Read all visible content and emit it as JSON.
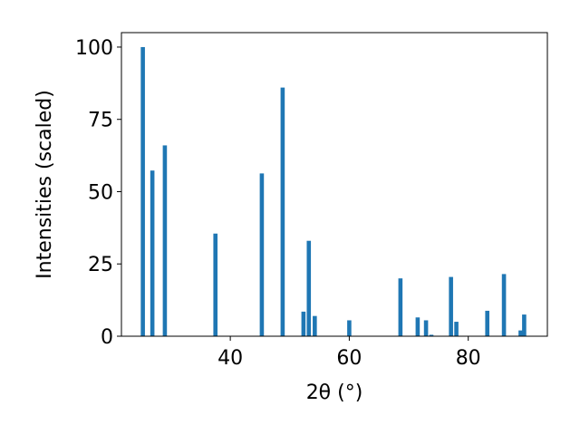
{
  "chart_data": {
    "type": "bar",
    "xlabel": "2θ (°)",
    "ylabel": "Intensities (scaled)",
    "xlim": [
      21.7,
      93.3
    ],
    "ylim": [
      0,
      105
    ],
    "xticks": [
      40,
      60,
      80
    ],
    "yticks": [
      0,
      25,
      50,
      75,
      100
    ],
    "bar_width": 0.7,
    "color": "#1f77b4",
    "grid": false,
    "points": [
      {
        "x": 25.3,
        "y": 100.0
      },
      {
        "x": 26.9,
        "y": 57.3
      },
      {
        "x": 29.0,
        "y": 66.0
      },
      {
        "x": 37.5,
        "y": 35.5
      },
      {
        "x": 45.3,
        "y": 56.3
      },
      {
        "x": 48.8,
        "y": 86.0
      },
      {
        "x": 52.3,
        "y": 8.5
      },
      {
        "x": 53.2,
        "y": 33.0
      },
      {
        "x": 54.2,
        "y": 7.0
      },
      {
        "x": 60.0,
        "y": 5.5
      },
      {
        "x": 68.6,
        "y": 20.0
      },
      {
        "x": 71.5,
        "y": 6.5
      },
      {
        "x": 72.9,
        "y": 5.5
      },
      {
        "x": 73.8,
        "y": 0.5
      },
      {
        "x": 77.1,
        "y": 20.5
      },
      {
        "x": 78.0,
        "y": 5.0
      },
      {
        "x": 83.2,
        "y": 8.8
      },
      {
        "x": 86.0,
        "y": 21.5
      },
      {
        "x": 88.8,
        "y": 2.0
      },
      {
        "x": 89.4,
        "y": 7.5
      }
    ]
  }
}
